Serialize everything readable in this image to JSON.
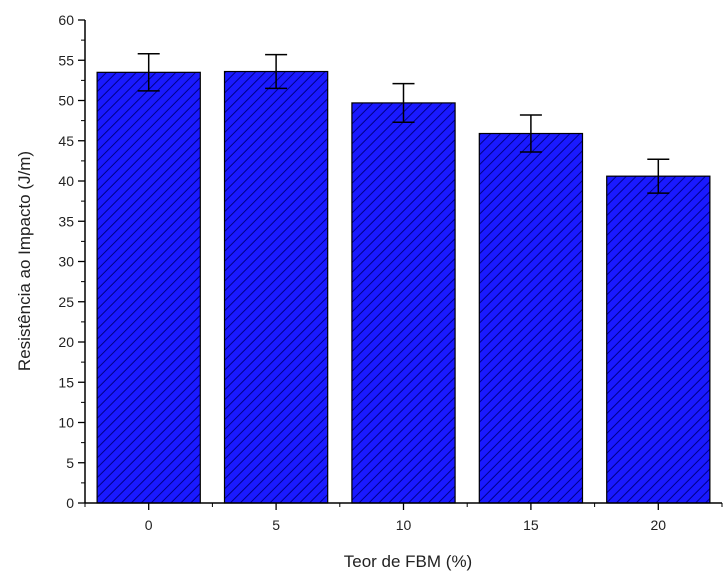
{
  "chart_data": {
    "type": "bar",
    "title": "",
    "xlabel": "Teor de FBM (%)",
    "ylabel": "Resistência ao Impacto (J/m)",
    "categories": [
      "0",
      "5",
      "10",
      "15",
      "20"
    ],
    "values": [
      53.5,
      53.6,
      49.7,
      45.9,
      40.6
    ],
    "errors": [
      2.3,
      2.1,
      2.4,
      2.3,
      2.1
    ],
    "ylim": [
      0,
      60
    ],
    "yticks": [
      0,
      5,
      10,
      15,
      20,
      25,
      30,
      35,
      40,
      45,
      50,
      55,
      60
    ],
    "grid": false,
    "bar_color": "#1a1aff",
    "hatch_color": "#00008b",
    "error_bar_color": "#000000"
  }
}
